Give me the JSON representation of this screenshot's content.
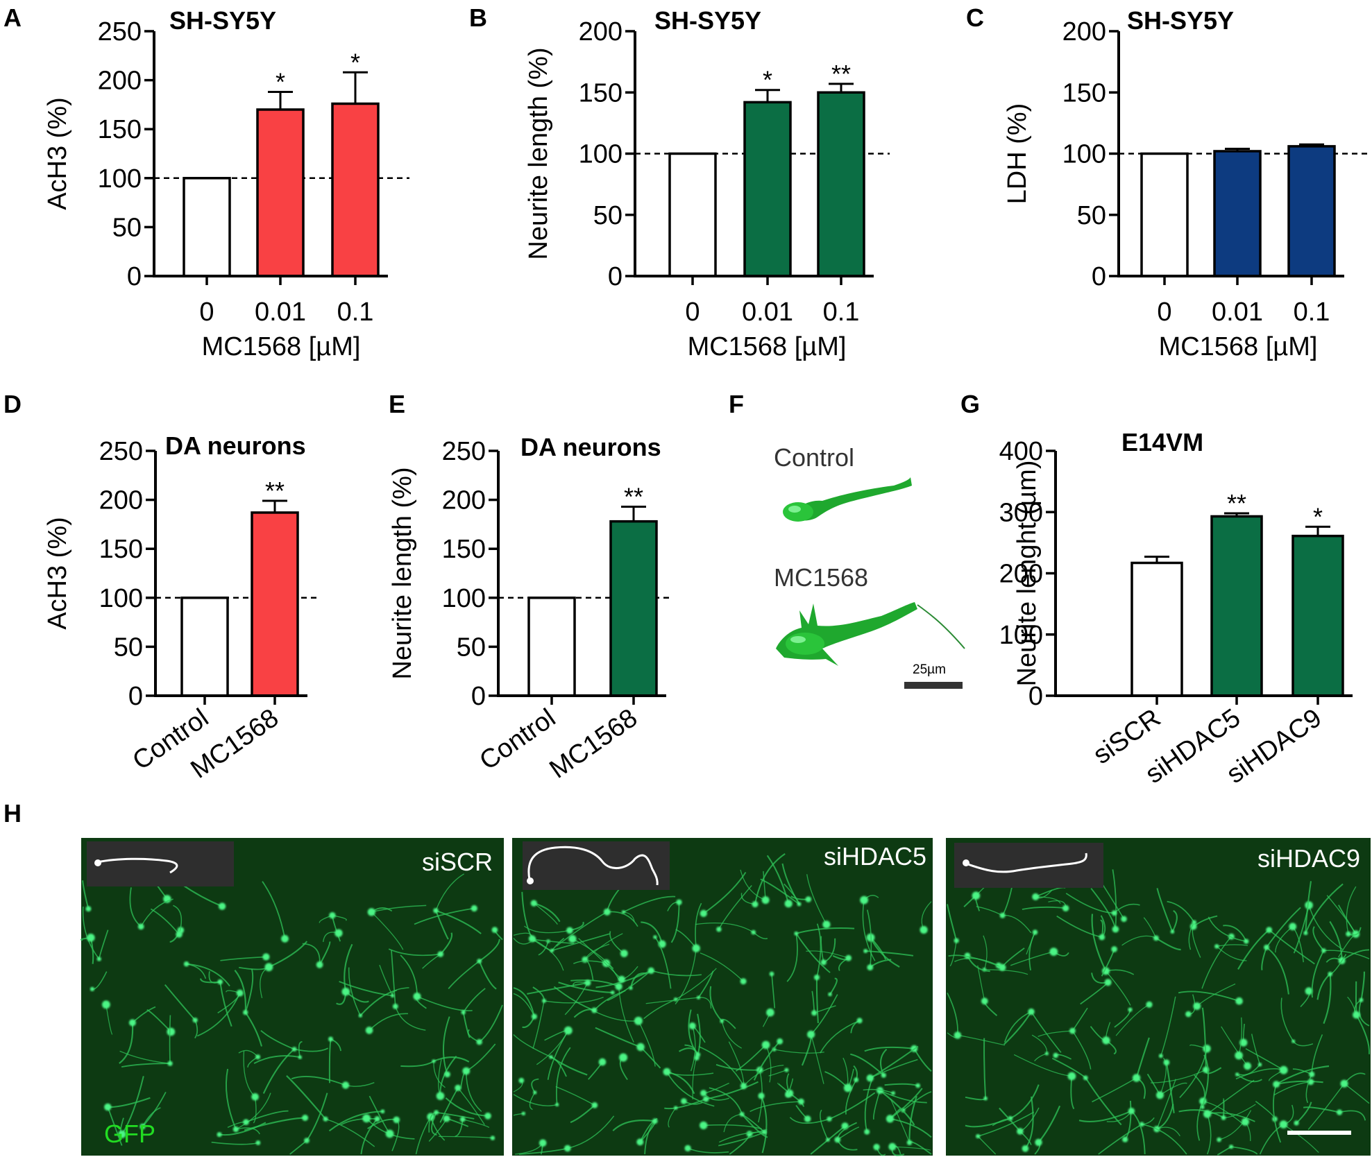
{
  "colors": {
    "red": "#f94144",
    "green": "#0b6e44",
    "blue": "#0d3b80",
    "white": "#ffffff",
    "micro_bg": "#0d3a12",
    "micro_cell": "#3cf075",
    "gfp": "#22dd22"
  },
  "chart_data": [
    {
      "id": "A",
      "letter": "A",
      "type": "bar",
      "title": "SH-SY5Y",
      "ylabel": "AcH3 (%)",
      "xlabel": "MC1568 [µM]",
      "ylim": [
        0,
        250
      ],
      "yticks": [
        0,
        50,
        100,
        150,
        200,
        250
      ],
      "categories": [
        "0",
        "0.01",
        "0.1"
      ],
      "values": [
        100,
        170,
        176
      ],
      "errors": [
        0,
        18,
        32
      ],
      "significance": [
        "",
        "*",
        "*"
      ],
      "bar_colors": [
        "#ffffff",
        "#f94144",
        "#f94144"
      ],
      "reference_line": 100,
      "rotated_labels": false
    },
    {
      "id": "B",
      "letter": "B",
      "type": "bar",
      "title": "SH-SY5Y",
      "ylabel": "Neurite length (%)",
      "xlabel": "MC1568 [µM]",
      "ylim": [
        0,
        200
      ],
      "yticks": [
        0,
        50,
        100,
        150,
        200
      ],
      "categories": [
        "0",
        "0.01",
        "0.1"
      ],
      "values": [
        100,
        142,
        150
      ],
      "errors": [
        0,
        10,
        7
      ],
      "significance": [
        "",
        "*",
        "**"
      ],
      "bar_colors": [
        "#ffffff",
        "#0b6e44",
        "#0b6e44"
      ],
      "reference_line": 100,
      "rotated_labels": false
    },
    {
      "id": "C",
      "letter": "C",
      "type": "bar",
      "title": "SH-SY5Y",
      "ylabel": "LDH (%)",
      "xlabel": "MC1568 [µM]",
      "ylim": [
        0,
        200
      ],
      "yticks": [
        0,
        50,
        100,
        150,
        200
      ],
      "categories": [
        "0",
        "0.01",
        "0.1"
      ],
      "values": [
        100,
        102,
        106
      ],
      "errors": [
        0,
        2,
        1.5
      ],
      "significance": [
        "",
        "",
        ""
      ],
      "bar_colors": [
        "#ffffff",
        "#0d3b80",
        "#0d3b80"
      ],
      "reference_line": 100,
      "rotated_labels": false
    },
    {
      "id": "D",
      "letter": "D",
      "type": "bar",
      "title": "DA neurons",
      "ylabel": "AcH3 (%)",
      "xlabel": "",
      "ylim": [
        0,
        250
      ],
      "yticks": [
        0,
        50,
        100,
        150,
        200,
        250
      ],
      "categories": [
        "Control",
        "MC1568"
      ],
      "values": [
        100,
        187
      ],
      "errors": [
        0,
        12
      ],
      "significance": [
        "",
        "**"
      ],
      "bar_colors": [
        "#ffffff",
        "#f94144"
      ],
      "reference_line": 100,
      "rotated_labels": true
    },
    {
      "id": "E",
      "letter": "E",
      "type": "bar",
      "title": "DA neurons",
      "ylabel": "Neurite length (%)",
      "xlabel": "",
      "ylim": [
        0,
        250
      ],
      "yticks": [
        0,
        50,
        100,
        150,
        200,
        250
      ],
      "categories": [
        "Control",
        "MC1568"
      ],
      "values": [
        100,
        178
      ],
      "errors": [
        0,
        15
      ],
      "significance": [
        "",
        "**"
      ],
      "bar_colors": [
        "#ffffff",
        "#0b6e44"
      ],
      "reference_line": 100,
      "rotated_labels": true
    },
    {
      "id": "G",
      "letter": "G",
      "type": "bar",
      "title": "E14VM",
      "ylabel": "Neurite lenght (µm)",
      "xlabel": "",
      "ylim": [
        0,
        400
      ],
      "yticks": [
        0,
        100,
        200,
        300,
        400
      ],
      "categories": [
        "siSCR",
        "siHDAC5",
        "siHDAC9"
      ],
      "values": [
        217,
        293,
        261
      ],
      "errors": [
        10,
        5,
        15
      ],
      "significance": [
        "",
        "**",
        "*"
      ],
      "bar_colors": [
        "#ffffff",
        "#0b6e44",
        "#0b6e44"
      ],
      "reference_line": null,
      "rotated_labels": true
    }
  ],
  "panel_f": {
    "letter": "F",
    "label_control": "Control",
    "label_treated": "MC1568",
    "scale_label": "25µm"
  },
  "panel_h": {
    "letter": "H",
    "image_labels": [
      "siSCR",
      "siHDAC5",
      "siHDAC9"
    ],
    "stain_label": "GFP"
  }
}
